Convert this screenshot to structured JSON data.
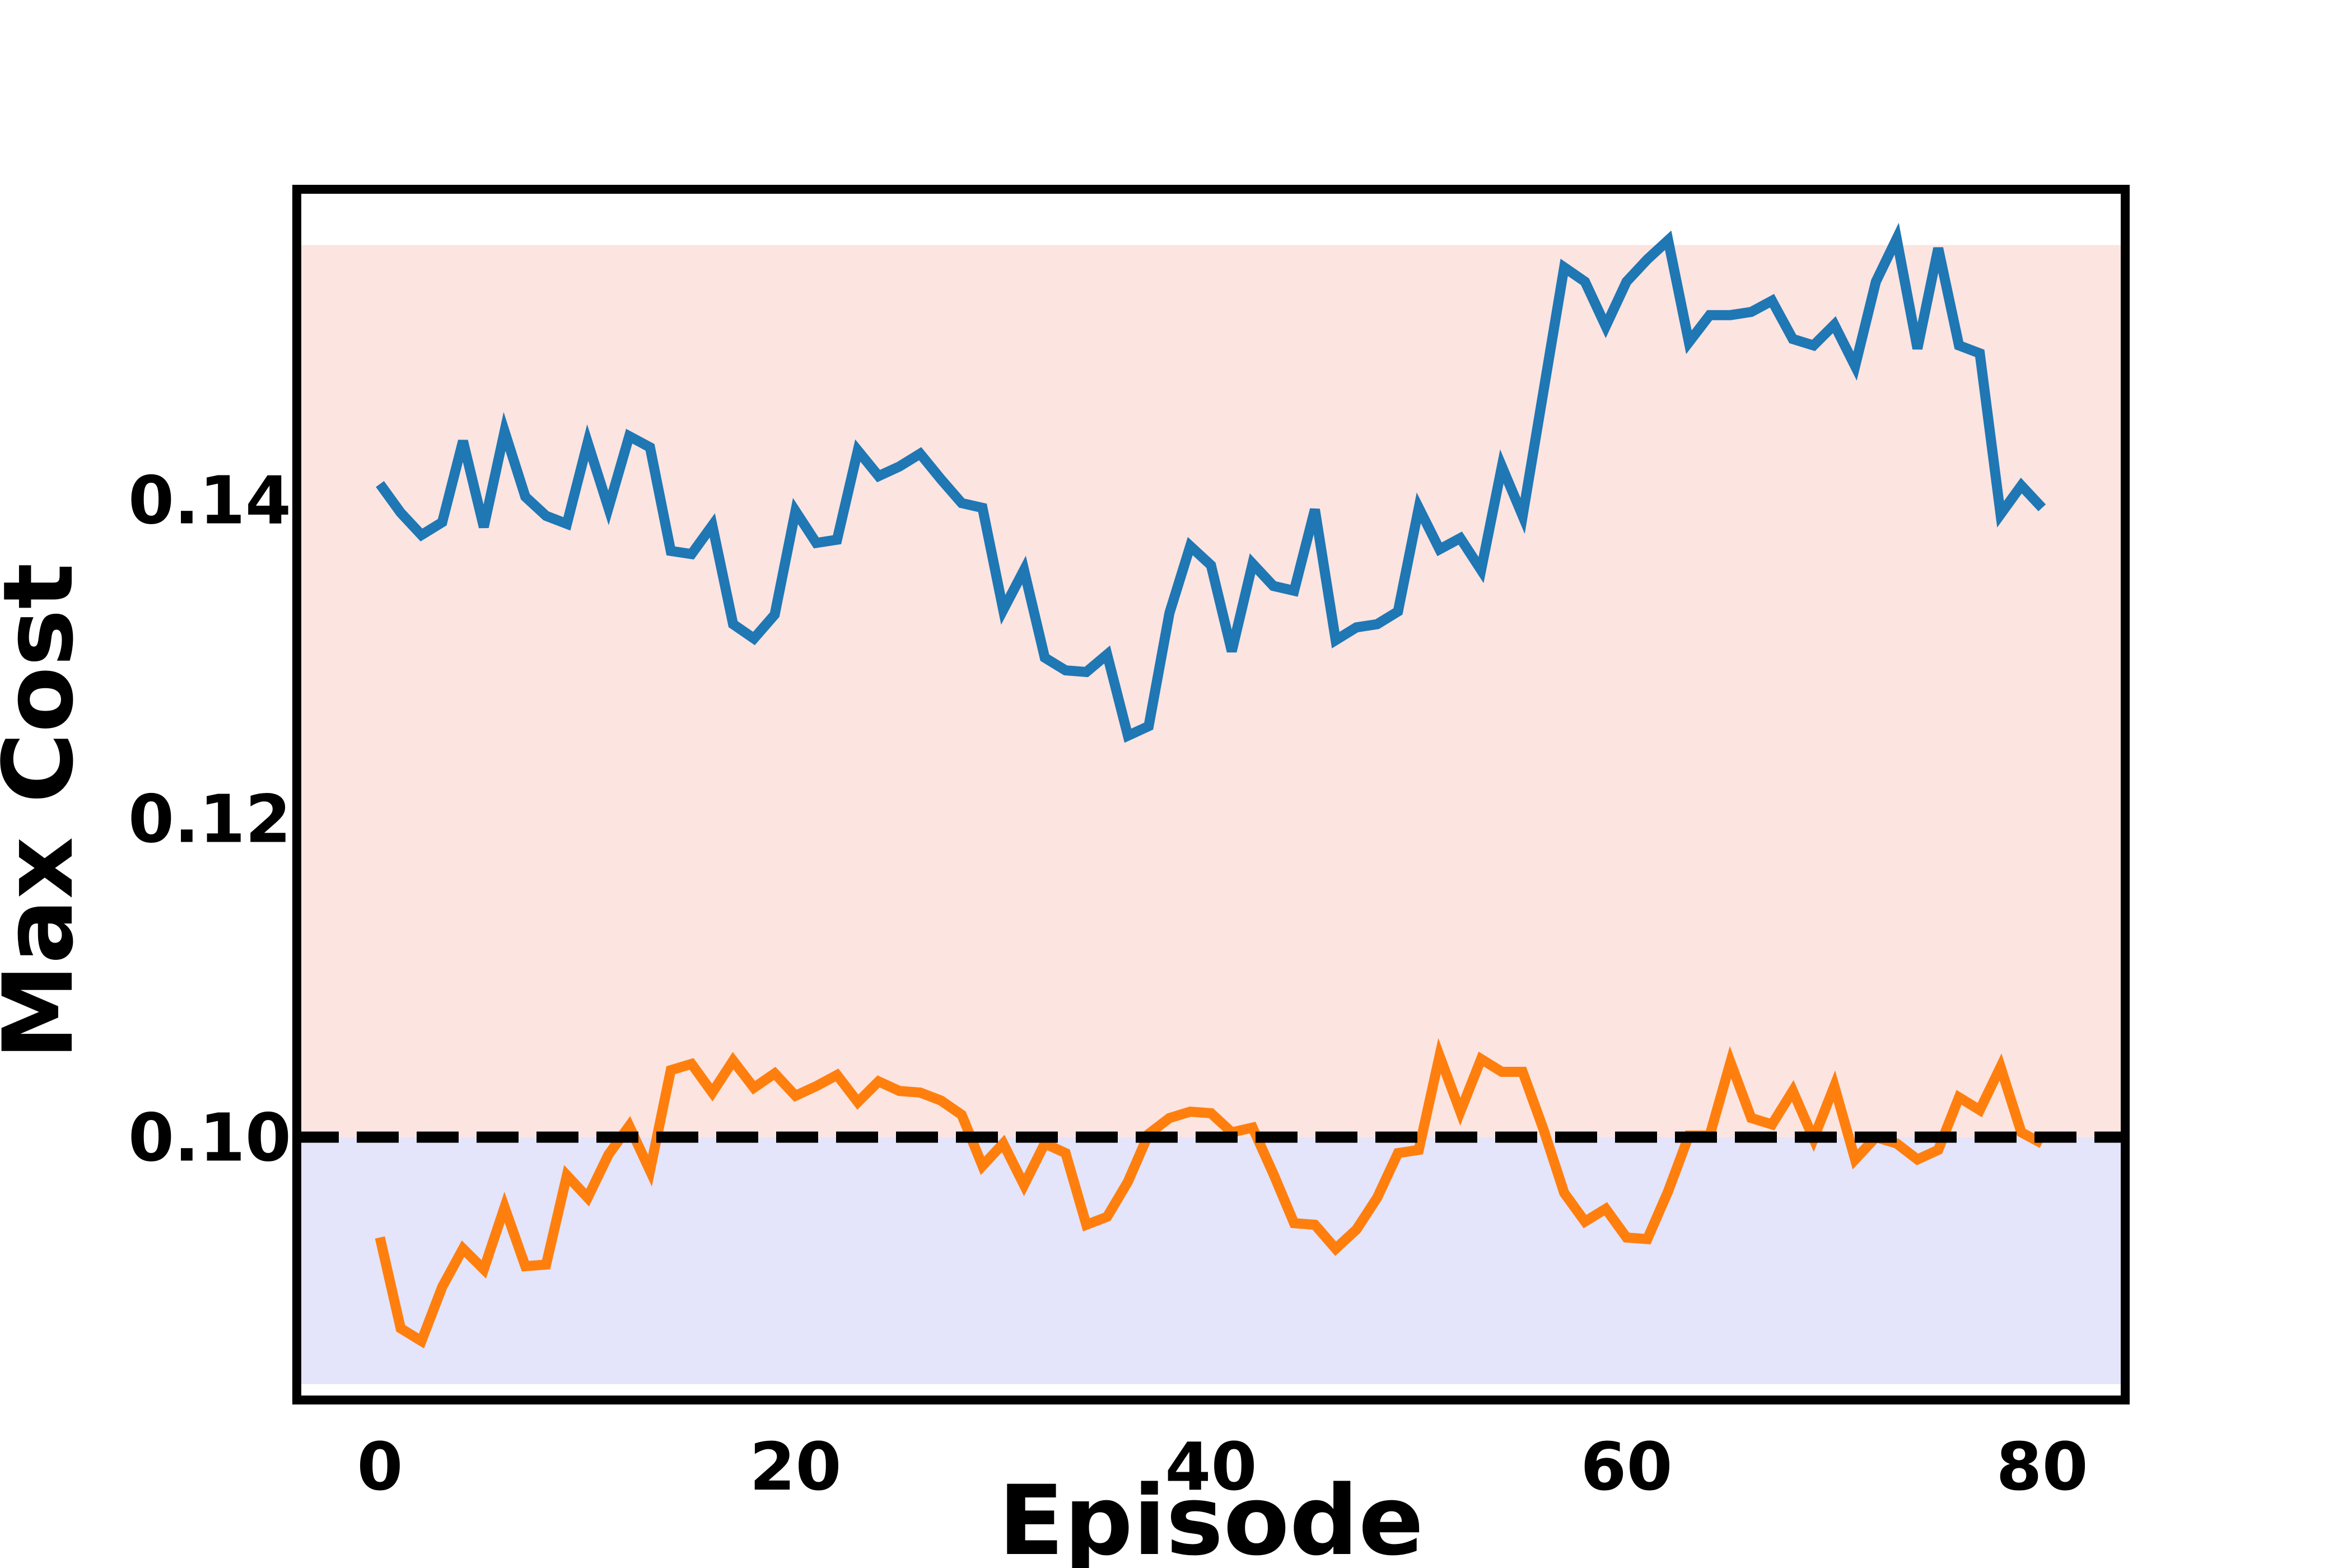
{
  "chart_data": {
    "type": "line",
    "xlabel": "Episode",
    "ylabel": "Max Cost",
    "xlim": [
      -4,
      84
    ],
    "ylim": [
      0.0835,
      0.1595
    ],
    "x_ticks": [
      0,
      20,
      40,
      60,
      80
    ],
    "x_tick_labels": [
      "0",
      "20",
      "40",
      "60",
      "80"
    ],
    "y_ticks": [
      0.1,
      0.12,
      0.14
    ],
    "y_tick_labels": [
      "0.10",
      "0.12",
      "0.14"
    ],
    "grid": false,
    "legend": "none",
    "threshold": {
      "value": 0.1,
      "style": "dashed",
      "color": "#000000"
    },
    "bands": [
      {
        "y0": 0.1,
        "y1": 0.156,
        "color": "#fce4e1"
      },
      {
        "y0": 0.0845,
        "y1": 0.1,
        "color": "#e4e4fa"
      }
    ],
    "x": [
      0,
      1,
      2,
      3,
      4,
      5,
      6,
      7,
      8,
      9,
      10,
      11,
      12,
      13,
      14,
      15,
      16,
      17,
      18,
      19,
      20,
      21,
      22,
      23,
      24,
      25,
      26,
      27,
      28,
      29,
      30,
      31,
      32,
      33,
      34,
      35,
      36,
      37,
      38,
      39,
      40,
      41,
      42,
      43,
      44,
      45,
      46,
      47,
      48,
      49,
      50,
      51,
      52,
      53,
      54,
      55,
      56,
      57,
      58,
      59,
      60,
      61,
      62,
      63,
      64,
      65,
      66,
      67,
      68,
      69,
      70,
      71,
      72,
      73,
      74,
      75,
      76,
      77,
      78,
      79,
      80
    ],
    "series": [
      {
        "color": "#1f77b4",
        "values": [
          0.141,
          0.1392,
          0.1378,
          0.1386,
          0.1437,
          0.1383,
          0.1443,
          0.1402,
          0.139,
          0.1385,
          0.1436,
          0.1395,
          0.144,
          0.1433,
          0.1368,
          0.1366,
          0.1384,
          0.1322,
          0.1313,
          0.1328,
          0.1393,
          0.1373,
          0.1375,
          0.1431,
          0.1415,
          0.1421,
          0.1429,
          0.1413,
          0.1398,
          0.1395,
          0.1331,
          0.1356,
          0.1301,
          0.1293,
          0.1292,
          0.1303,
          0.1252,
          0.1258,
          0.1329,
          0.1371,
          0.1359,
          0.1305,
          0.136,
          0.1346,
          0.1343,
          0.1394,
          0.1312,
          0.132,
          0.1322,
          0.133,
          0.1395,
          0.1369,
          0.1376,
          0.1356,
          0.1421,
          0.139,
          0.1468,
          0.1546,
          0.1537,
          0.1509,
          0.1537,
          0.1551,
          0.1563,
          0.1499,
          0.1516,
          0.1516,
          0.1518,
          0.1525,
          0.1501,
          0.1497,
          0.151,
          0.1484,
          0.1537,
          0.1564,
          0.1495,
          0.1558,
          0.1497,
          0.1492,
          0.1391,
          0.1409,
          0.1395
        ]
      },
      {
        "color": "#ff7f0e",
        "values": [
          0.0937,
          0.088,
          0.0872,
          0.0906,
          0.093,
          0.0917,
          0.0956,
          0.0919,
          0.092,
          0.0976,
          0.0962,
          0.0989,
          0.1007,
          0.0979,
          0.1042,
          0.1046,
          0.1028,
          0.1048,
          0.1031,
          0.104,
          0.1026,
          0.1032,
          0.1039,
          0.1022,
          0.1035,
          0.1029,
          0.1028,
          0.1023,
          0.1014,
          0.0982,
          0.0996,
          0.097,
          0.0996,
          0.099,
          0.0945,
          0.095,
          0.0972,
          0.1002,
          0.1012,
          0.1016,
          0.1015,
          0.1003,
          0.1006,
          0.0977,
          0.0946,
          0.0945,
          0.093,
          0.0942,
          0.0962,
          0.099,
          0.0992,
          0.1051,
          0.1016,
          0.1049,
          0.1041,
          0.1041,
          0.1005,
          0.0965,
          0.0947,
          0.0955,
          0.0937,
          0.0936,
          0.0966,
          0.1001,
          0.1001,
          0.1047,
          0.1012,
          0.1008,
          0.1029,
          0.0999,
          0.1032,
          0.0986,
          0.1,
          0.0996,
          0.0986,
          0.0992,
          0.1025,
          0.1017,
          0.1044,
          0.1003,
          0.0996
        ]
      }
    ]
  }
}
